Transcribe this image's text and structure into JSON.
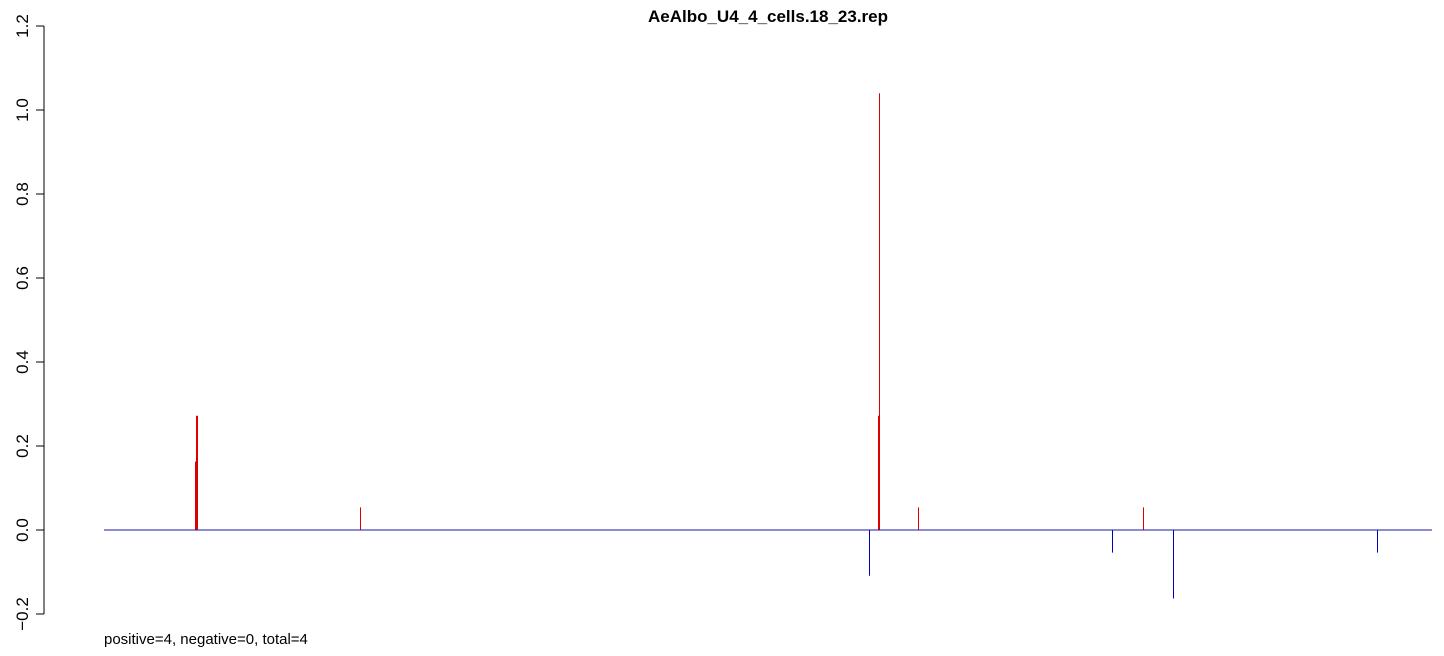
{
  "chart_data": {
    "type": "bar",
    "title": "AeAlbo_U4_4_cells.18_23.rep",
    "xlabel": "",
    "ylabel": "",
    "ylim": [
      -0.2,
      1.2
    ],
    "yticks": [
      "−0.2",
      "0.0",
      "0.2",
      "0.4",
      "0.6",
      "0.8",
      "1.0",
      "1.2"
    ],
    "ytick_values": [
      -0.2,
      0.0,
      0.2,
      0.4,
      0.6,
      0.8,
      1.0,
      1.2
    ],
    "xlim": [
      0,
      1444
    ],
    "grid": false,
    "baseline": 0,
    "series": [
      {
        "color": "#dd0000",
        "x": [
          195,
          196,
          197,
          360,
          878,
          879,
          918,
          1143
        ],
        "values": [
          0.163,
          0.272,
          0.272,
          0.054,
          0.272,
          1.04,
          0.054,
          0.054
        ]
      },
      {
        "color": "#0000bb",
        "x": [
          869,
          1112,
          1173,
          1377
        ],
        "values": [
          -0.109,
          -0.054,
          -0.163,
          -0.054
        ]
      }
    ],
    "baseline_color": "#1a1aa8",
    "footer": "positive=4, negative=0, total=4"
  }
}
